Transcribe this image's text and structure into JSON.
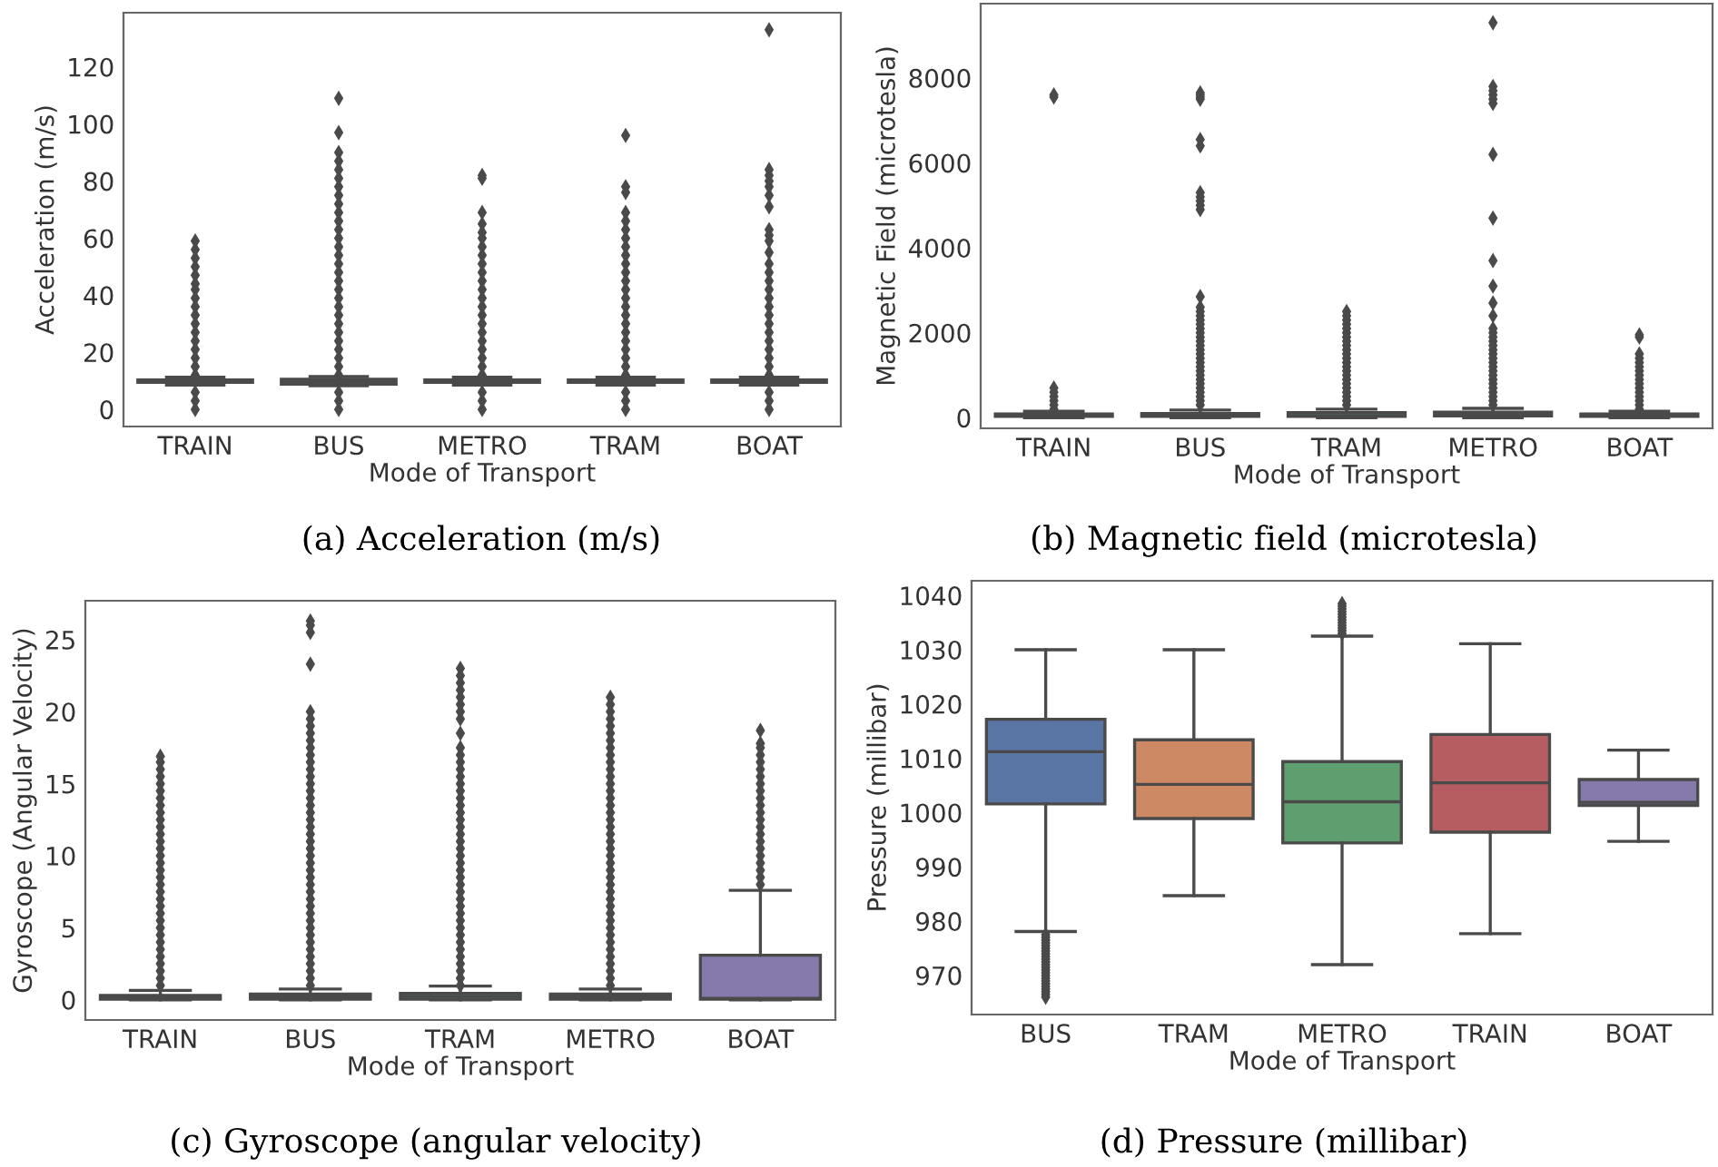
{
  "chart_data": [
    {
      "type": "box",
      "title": "(a) Acceleration (m/s)",
      "xlabel": "Mode of Transport",
      "ylabel": "Acceleration (m/s)",
      "categories": [
        "TRAIN",
        "BUS",
        "METRO",
        "TRAM",
        "BOAT"
      ],
      "colors": [
        "#5975a4",
        "#cc8963",
        "#5f9e6e",
        "#b55d60",
        "#857aab"
      ],
      "ylim": [
        -6,
        139
      ],
      "yticks": [
        0,
        20,
        40,
        60,
        80,
        100,
        120
      ],
      "grid": false,
      "marker": "diamond",
      "boxes": [
        {
          "low": 8.5,
          "q1": 9.5,
          "median": 9.8,
          "q3": 10.3,
          "high": 11.3,
          "outliers": [
            0,
            3,
            6,
            12,
            15,
            18,
            21,
            24,
            27,
            30,
            33,
            36,
            39,
            42,
            44,
            47,
            50,
            53,
            56,
            59
          ]
        },
        {
          "low": 8.3,
          "q1": 8.8,
          "median": 9.8,
          "q3": 10.6,
          "high": 11.5,
          "outliers": [
            0,
            3,
            6,
            12,
            15,
            18,
            21,
            24,
            27,
            30,
            33,
            36,
            39,
            42,
            45,
            48,
            51,
            54,
            57,
            60,
            63,
            66,
            69,
            72,
            75,
            78,
            81,
            84,
            87,
            90,
            97,
            109
          ]
        },
        {
          "low": 8.5,
          "q1": 9.5,
          "median": 9.8,
          "q3": 10.3,
          "high": 11.3,
          "outliers": [
            0,
            3,
            6,
            12,
            15,
            18,
            21,
            24,
            27,
            30,
            33,
            36,
            39,
            42,
            45,
            48,
            51,
            54,
            57,
            60,
            62,
            65,
            69,
            81,
            82
          ]
        },
        {
          "low": 8.5,
          "q1": 9.5,
          "median": 9.8,
          "q3": 10.3,
          "high": 11.3,
          "outliers": [
            0,
            3,
            6,
            12,
            15,
            18,
            21,
            24,
            27,
            30,
            33,
            36,
            39,
            42,
            45,
            48,
            51,
            54,
            57,
            60,
            63,
            66,
            69,
            76,
            78,
            96
          ]
        },
        {
          "low": 8.5,
          "q1": 9.5,
          "median": 9.8,
          "q3": 10.3,
          "high": 11.3,
          "outliers": [
            0,
            3,
            6,
            12,
            15,
            18,
            21,
            24,
            27,
            30,
            33,
            36,
            39,
            42,
            45,
            48,
            51,
            55,
            59,
            61,
            63,
            71,
            75,
            78,
            80,
            82,
            84,
            133
          ]
        }
      ]
    },
    {
      "type": "box",
      "title": "(b) Magnetic field (microtesla)",
      "xlabel": "Mode of Transport",
      "ylabel": "Magnetic Field (microtesla)",
      "categories": [
        "TRAIN",
        "BUS",
        "TRAM",
        "METRO",
        "BOAT"
      ],
      "colors": [
        "#5975a4",
        "#cc8963",
        "#5f9e6e",
        "#b55d60",
        "#857aab"
      ],
      "ylim": [
        -250,
        9750
      ],
      "yticks": [
        0,
        2000,
        4000,
        6000,
        8000
      ],
      "grid": false,
      "marker": "diamond",
      "boxes": [
        {
          "low": 0,
          "q1": 30,
          "median": 50,
          "q3": 90,
          "high": 150,
          "outliers": [
            200,
            300,
            400,
            500,
            600,
            700,
            7550,
            7600
          ]
        },
        {
          "low": 0,
          "q1": 30,
          "median": 50,
          "q3": 100,
          "high": 180,
          "outliers": [
            300,
            400,
            500,
            600,
            700,
            800,
            900,
            1000,
            1100,
            1200,
            1300,
            1400,
            1500,
            1600,
            1700,
            1800,
            1900,
            2000,
            2100,
            2200,
            2300,
            2400,
            2500,
            2600,
            2850,
            4900,
            5000,
            5100,
            5200,
            5300,
            6400,
            6550,
            7500,
            7550,
            7600,
            7650
          ]
        },
        {
          "low": 0,
          "q1": 30,
          "median": 50,
          "q3": 120,
          "high": 200,
          "outliers": [
            300,
            400,
            500,
            600,
            700,
            800,
            900,
            1000,
            1100,
            1200,
            1300,
            1400,
            1500,
            1600,
            1700,
            1800,
            1900,
            2000,
            2100,
            2200,
            2300,
            2400,
            2500
          ]
        },
        {
          "low": 0,
          "q1": 40,
          "median": 80,
          "q3": 130,
          "high": 220,
          "outliers": [
            300,
            400,
            500,
            600,
            700,
            800,
            900,
            1000,
            1100,
            1200,
            1300,
            1400,
            1500,
            1600,
            1700,
            1800,
            1900,
            2000,
            2100,
            2400,
            2700,
            3100,
            3700,
            4700,
            6200,
            7400,
            7500,
            7600,
            7700,
            7800,
            9300
          ]
        },
        {
          "low": 0,
          "q1": 30,
          "median": 50,
          "q3": 90,
          "high": 150,
          "outliers": [
            200,
            300,
            400,
            500,
            600,
            700,
            800,
            900,
            1000,
            1100,
            1200,
            1300,
            1400,
            1500,
            1900,
            1950
          ]
        }
      ]
    },
    {
      "type": "box",
      "title": "(c) Gyroscope (angular velocity)",
      "xlabel": "Mode of Transport",
      "ylabel": "Gyroscope (Angular Velocity)",
      "categories": [
        "TRAIN",
        "BUS",
        "TRAM",
        "METRO",
        "BOAT"
      ],
      "colors": [
        "#5975a4",
        "#cc8963",
        "#5f9e6e",
        "#b55d60",
        "#857aab"
      ],
      "ylim": [
        -1.4,
        27.7
      ],
      "yticks": [
        0,
        5,
        10,
        15,
        20,
        25
      ],
      "grid": false,
      "marker": "diamond",
      "boxes": [
        {
          "low": 0,
          "q1": 0.05,
          "median": 0.15,
          "q3": 0.3,
          "high": 0.65,
          "outliers": [
            1,
            1.5,
            2,
            2.5,
            3,
            3.5,
            4,
            4.5,
            5,
            5.5,
            6,
            6.5,
            7,
            7.5,
            8,
            8.5,
            9,
            9.5,
            10,
            10.5,
            11,
            11.5,
            12,
            12.5,
            13,
            13.5,
            14,
            14.5,
            15,
            15.5,
            16,
            16.5,
            16.9
          ]
        },
        {
          "low": 0,
          "q1": 0.05,
          "median": 0.2,
          "q3": 0.4,
          "high": 0.75,
          "outliers": [
            1,
            1.5,
            2,
            2.5,
            3,
            3.5,
            4,
            4.5,
            5,
            5.5,
            6,
            6.5,
            7,
            7.5,
            8,
            8.5,
            9,
            9.5,
            10,
            10.5,
            11,
            11.5,
            12,
            12.5,
            13,
            13.5,
            14,
            14.5,
            15,
            15.5,
            16,
            16.5,
            17,
            17.5,
            18,
            18.5,
            19,
            19.5,
            20,
            23.3,
            25.5,
            26,
            26.3
          ]
        },
        {
          "low": 0,
          "q1": 0.05,
          "median": 0.25,
          "q3": 0.45,
          "high": 0.95,
          "outliers": [
            1,
            1.5,
            2,
            2.5,
            3,
            3.5,
            4,
            4.5,
            5,
            5.5,
            6,
            6.5,
            7,
            7.5,
            8,
            8.5,
            9,
            9.5,
            10,
            10.5,
            11,
            11.5,
            12,
            12.5,
            13,
            13.5,
            14,
            14.5,
            15,
            15.5,
            16,
            16.5,
            17,
            17.5,
            18.5,
            19.5,
            20,
            20.5,
            21,
            21.5,
            22,
            22.5,
            23
          ]
        },
        {
          "low": 0,
          "q1": 0.05,
          "median": 0.2,
          "q3": 0.4,
          "high": 0.75,
          "outliers": [
            1,
            1.5,
            2,
            2.5,
            3,
            3.5,
            4,
            4.5,
            5,
            5.5,
            6,
            6.5,
            7,
            7.5,
            8,
            8.5,
            9,
            9.5,
            10,
            10.5,
            11,
            11.5,
            12,
            12.5,
            13,
            13.5,
            14,
            14.5,
            15,
            15.5,
            16,
            16.5,
            17,
            17.5,
            18,
            18.5,
            19,
            19.5,
            20,
            20.5,
            21
          ]
        },
        {
          "low": 0,
          "q1": 0.05,
          "median": 0.1,
          "q3": 3.1,
          "high": 7.6,
          "outliers": [
            8,
            8.5,
            9,
            9.5,
            10,
            10.5,
            11,
            11.5,
            12,
            12.5,
            13,
            13.5,
            14,
            14.5,
            15,
            15.5,
            16,
            16.5,
            17,
            17.5,
            17.8,
            18.7
          ]
        }
      ]
    },
    {
      "type": "box",
      "title": "(d) Pressure (millibar)",
      "xlabel": "Mode of Transport",
      "ylabel": "Pressure (millibar)",
      "categories": [
        "BUS",
        "TRAM",
        "METRO",
        "TRAIN",
        "BOAT"
      ],
      "colors": [
        "#5975a4",
        "#cc8963",
        "#5f9e6e",
        "#b55d60",
        "#857aab"
      ],
      "ylim": [
        962.8,
        1042.7
      ],
      "yticks": [
        970,
        980,
        990,
        1000,
        1010,
        1020,
        1030,
        1040
      ],
      "grid": false,
      "marker": "diamond",
      "boxes": [
        {
          "low": 978.1,
          "q1": 1001.6,
          "median": 1011.2,
          "q3": 1017.2,
          "high": 1030.0,
          "outliers": [
            966,
            966.5,
            967,
            967.5,
            968,
            968.5,
            969,
            969.5,
            970,
            970.5,
            971,
            971.5,
            972,
            972.5,
            973,
            973.5,
            974,
            974.5,
            975,
            975.5,
            976,
            976.5,
            977,
            977.5
          ]
        },
        {
          "low": 984.7,
          "q1": 998.9,
          "median": 1005.2,
          "q3": 1013.4,
          "high": 1030.0
        },
        {
          "low": 972.0,
          "q1": 994.4,
          "median": 1002.0,
          "q3": 1009.4,
          "high": 1032.5,
          "outliers": [
            1033,
            1033.5,
            1034,
            1034.5,
            1035,
            1035.5,
            1036,
            1036.5,
            1037,
            1037.5,
            1038,
            1038.5
          ]
        },
        {
          "low": 977.7,
          "q1": 996.4,
          "median": 1005.5,
          "q3": 1014.4,
          "high": 1031.1
        },
        {
          "low": 994.7,
          "q1": 1001.3,
          "median": 1001.9,
          "q3": 1006.1,
          "high": 1011.5
        }
      ]
    }
  ]
}
